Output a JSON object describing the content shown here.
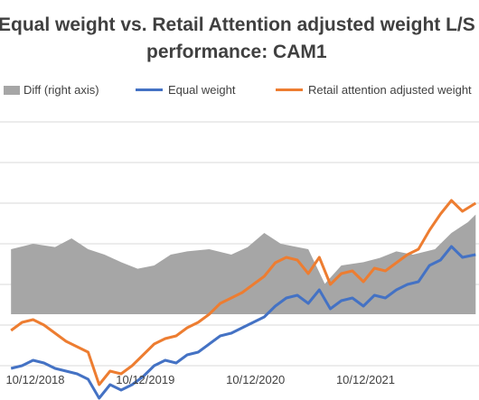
{
  "title_line1": "Equal weight vs. Retail Attention adjusted weight L/S",
  "title_line2": "performance: CAM1",
  "chart_data": {
    "type": "line",
    "title": "Equal weight vs. Retail Attention adjusted weight L/S performance: CAM1",
    "xlabel": "",
    "ylabel": "",
    "x_ticks": [
      "10/12/2018",
      "10/12/2019",
      "10/12/2020",
      "10/12/2021"
    ],
    "series": [
      {
        "name": "Diff (right axis)",
        "kind": "area",
        "color": "#a6a6a6",
        "x": [
          2018.0,
          2018.2,
          2018.4,
          2018.55,
          2018.7,
          2018.85,
          2019.0,
          2019.15,
          2019.3,
          2019.45,
          2019.6,
          2019.8,
          2020.0,
          2020.15,
          2020.3,
          2020.45,
          2020.6,
          2020.7,
          2020.85,
          2021.0,
          2021.2,
          2021.35,
          2021.5,
          2021.65,
          2021.85,
          2022.0,
          2022.15,
          2022.22
        ],
        "values": [
          0.6,
          0.65,
          0.62,
          0.7,
          0.6,
          0.55,
          0.48,
          0.42,
          0.45,
          0.55,
          0.58,
          0.6,
          0.55,
          0.62,
          0.75,
          0.65,
          0.62,
          0.6,
          0.28,
          0.45,
          0.48,
          0.52,
          0.58,
          0.55,
          0.6,
          0.75,
          0.85,
          0.92
        ]
      },
      {
        "name": "Equal weight",
        "kind": "line",
        "color": "#4472c4",
        "x": [
          2018.0,
          2018.1,
          2018.2,
          2018.3,
          2018.4,
          2018.5,
          2018.6,
          2018.7,
          2018.8,
          2018.9,
          2019.0,
          2019.1,
          2019.2,
          2019.3,
          2019.4,
          2019.5,
          2019.6,
          2019.7,
          2019.8,
          2019.9,
          2020.0,
          2020.1,
          2020.2,
          2020.3,
          2020.4,
          2020.5,
          2020.6,
          2020.7,
          2020.8,
          2020.9,
          2021.0,
          2021.1,
          2021.2,
          2021.3,
          2021.4,
          2021.5,
          2021.6,
          2021.7,
          2021.8,
          2021.9,
          2022.0,
          2022.1,
          2022.22
        ],
        "values": [
          -1.0,
          -0.95,
          -0.85,
          -0.9,
          -1.0,
          -1.05,
          -1.1,
          -1.2,
          -1.55,
          -1.3,
          -1.4,
          -1.3,
          -1.15,
          -0.95,
          -0.85,
          -0.9,
          -0.75,
          -0.7,
          -0.55,
          -0.4,
          -0.35,
          -0.25,
          -0.15,
          -0.05,
          0.15,
          0.3,
          0.35,
          0.2,
          0.45,
          0.1,
          0.25,
          0.3,
          0.15,
          0.35,
          0.3,
          0.45,
          0.55,
          0.6,
          0.9,
          1.0,
          1.25,
          1.05,
          1.1
        ]
      },
      {
        "name": "Retail attention adjusted weight",
        "kind": "line",
        "color": "#ed7d31",
        "x": [
          2018.0,
          2018.1,
          2018.2,
          2018.3,
          2018.4,
          2018.5,
          2018.6,
          2018.7,
          2018.8,
          2018.9,
          2019.0,
          2019.1,
          2019.2,
          2019.3,
          2019.4,
          2019.5,
          2019.6,
          2019.7,
          2019.8,
          2019.9,
          2020.0,
          2020.1,
          2020.2,
          2020.3,
          2020.4,
          2020.5,
          2020.6,
          2020.7,
          2020.8,
          2020.9,
          2021.0,
          2021.1,
          2021.2,
          2021.3,
          2021.4,
          2021.5,
          2021.6,
          2021.7,
          2021.8,
          2021.9,
          2022.0,
          2022.1,
          2022.22
        ],
        "values": [
          -0.3,
          -0.15,
          -0.1,
          -0.2,
          -0.35,
          -0.5,
          -0.6,
          -0.7,
          -1.3,
          -1.05,
          -1.1,
          -0.95,
          -0.75,
          -0.55,
          -0.45,
          -0.4,
          -0.25,
          -0.15,
          0.0,
          0.2,
          0.3,
          0.4,
          0.55,
          0.7,
          0.95,
          1.05,
          1.0,
          0.75,
          1.05,
          0.55,
          0.75,
          0.8,
          0.6,
          0.85,
          0.8,
          0.95,
          1.1,
          1.2,
          1.55,
          1.85,
          2.1,
          1.9,
          2.05
        ]
      }
    ]
  },
  "legend": {
    "diff": "Diff (right axis)",
    "equal": "Equal weight",
    "retail": "Retail attention adjusted weight"
  }
}
